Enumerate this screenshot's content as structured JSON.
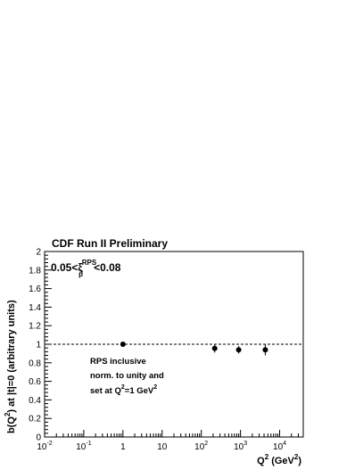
{
  "chart_data": {
    "type": "scatter",
    "title": "CDF Run II Preliminary",
    "xlabel": "Q^2 (GeV^2)",
    "ylabel": "b(Q^2) at |t|=0 (arbitrary units)",
    "x_scale": "log",
    "xlim": [
      0.01,
      40000
    ],
    "ylim": [
      0,
      2
    ],
    "x_ticks": [
      {
        "value": 0.01,
        "base": "10",
        "exp": "-2"
      },
      {
        "value": 0.1,
        "base": "10",
        "exp": "-1"
      },
      {
        "value": 1,
        "base": "1",
        "exp": ""
      },
      {
        "value": 10,
        "base": "10",
        "exp": ""
      },
      {
        "value": 100,
        "base": "10",
        "exp": "2"
      },
      {
        "value": 1000,
        "base": "10",
        "exp": "3"
      },
      {
        "value": 10000,
        "base": "10",
        "exp": "4"
      }
    ],
    "y_ticks": [
      "0",
      "0.2",
      "0.4",
      "0.6",
      "0.8",
      "1",
      "1.2",
      "1.4",
      "1.6",
      "1.8",
      "2"
    ],
    "grid": false,
    "reference_line": {
      "y": 1,
      "style": "dashed"
    },
    "cut_label": {
      "prefix": "0.05<ξ",
      "sup": "RPS",
      "sub": "p̄",
      "suffix": "<0.08"
    },
    "annotation": {
      "line1": "RPS inclusive",
      "line2": "norm. to unity and",
      "line3_prefix": "set at Q",
      "line3_sup1": "2",
      "line3_mid": "=1 GeV",
      "line3_sup2": "2"
    },
    "xlabel_parts": {
      "q": "Q",
      "sup1": "2",
      "mid": " (GeV",
      "sup2": "2",
      "end": ")"
    },
    "ylabel_parts": {
      "b": "b(Q",
      "sup": "2",
      "rest": ") at |t|=0 (arbitrary units)"
    },
    "points": [
      {
        "x": 1,
        "y": 1.0,
        "yerr": 0.0
      },
      {
        "x": 220,
        "y": 0.955,
        "yerr": 0.045
      },
      {
        "x": 900,
        "y": 0.94,
        "yerr": 0.04
      },
      {
        "x": 4300,
        "y": 0.94,
        "yerr": 0.06
      }
    ]
  }
}
